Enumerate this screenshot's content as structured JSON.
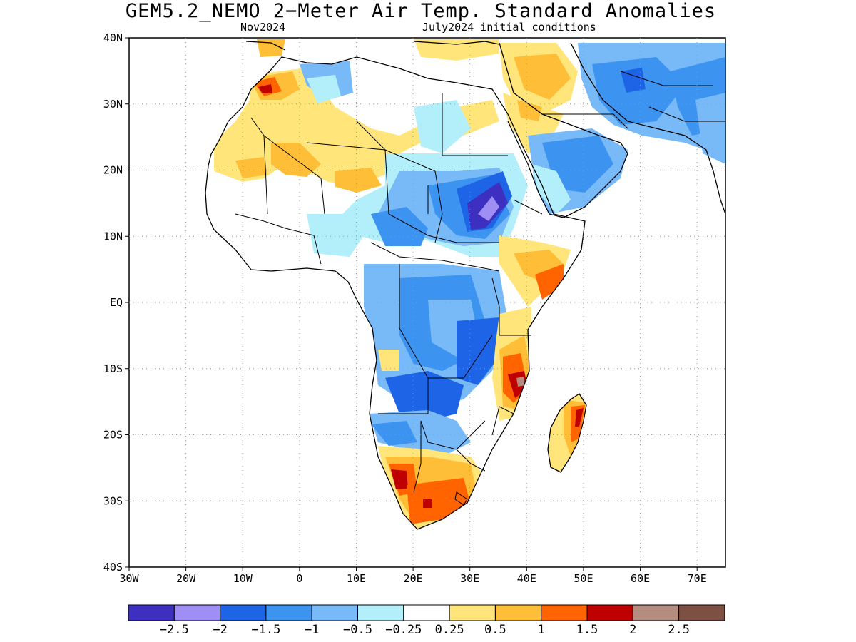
{
  "title": "GEM5.2_NEMO 2−Meter Air Temp. Standard Anomalies",
  "subtitle_left": "Nov2024",
  "subtitle_right": "July2024 initial conditions",
  "lat_labels": [
    "40N",
    "30N",
    "20N",
    "10N",
    "EQ",
    "10S",
    "20S",
    "30S",
    "40S"
  ],
  "lon_labels": [
    "30W",
    "20W",
    "10W",
    "0",
    "10E",
    "20E",
    "30E",
    "40E",
    "50E",
    "60E",
    "70E"
  ],
  "colorbar": {
    "colors": [
      "#3d2fbf",
      "#9f8ff5",
      "#1e64e6",
      "#3c94f0",
      "#78b9f7",
      "#b3effa",
      "#ffffff",
      "#ffe57a",
      "#ffbe37",
      "#ff6400",
      "#be0000",
      "#b48c80",
      "#7d5044"
    ],
    "labels": [
      "−2.5",
      "−2",
      "−1.5",
      "−1",
      "−0.5",
      "−0.25",
      "0.25",
      "0.5",
      "1",
      "1.5",
      "2",
      "2.5"
    ]
  },
  "map": {
    "projection": "lat-lon",
    "lon_range": [
      -30,
      75
    ],
    "lat_range": [
      -40,
      40
    ],
    "grid": "dotted",
    "land_color": "#ffffff",
    "ocean_color": "#ffffff",
    "border_color": "#000000"
  }
}
